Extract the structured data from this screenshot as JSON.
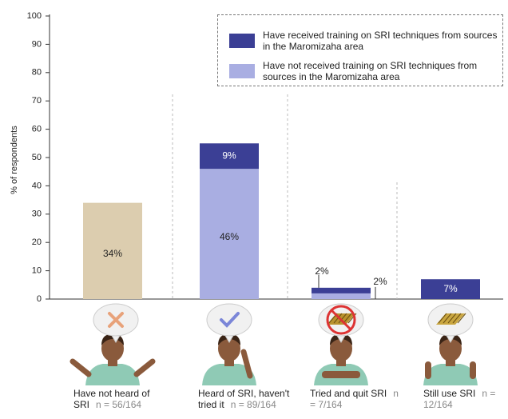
{
  "chart_data": {
    "type": "stacked_bar",
    "y_axis_label": "% of respondents",
    "categories": [
      "Have not heard of SRI",
      "Heard of SRI, haven't tried it",
      "Tried and quit SRI",
      "Still use SRI"
    ],
    "sample_sizes": [
      "n = 56/164",
      "n = 89/164",
      "n = 7/164",
      "n = 12/164"
    ],
    "series": [
      {
        "name": "Have received training on SRI techniques from sources in the Maromizaha area",
        "color": "#3b3f95",
        "values": [
          null,
          9,
          2,
          7
        ],
        "value_labels": [
          null,
          "9%",
          "2%",
          "7%"
        ]
      },
      {
        "name": "Have not received training on SRI techniques from sources in the Maromizaha area",
        "color": "#a9aee2",
        "values": [
          null,
          46,
          2,
          null
        ],
        "value_labels": [
          null,
          "46%",
          "2%",
          null
        ]
      },
      {
        "color": "#dccdaf",
        "values": [
          34,
          null,
          null,
          null
        ],
        "value_labels": [
          "34%",
          null,
          null,
          null
        ]
      }
    ],
    "ylim": [
      0,
      100
    ],
    "yticks": [
      0,
      10,
      20,
      30,
      40,
      50,
      60,
      70,
      80,
      90,
      100
    ],
    "legend": "top-right"
  }
}
